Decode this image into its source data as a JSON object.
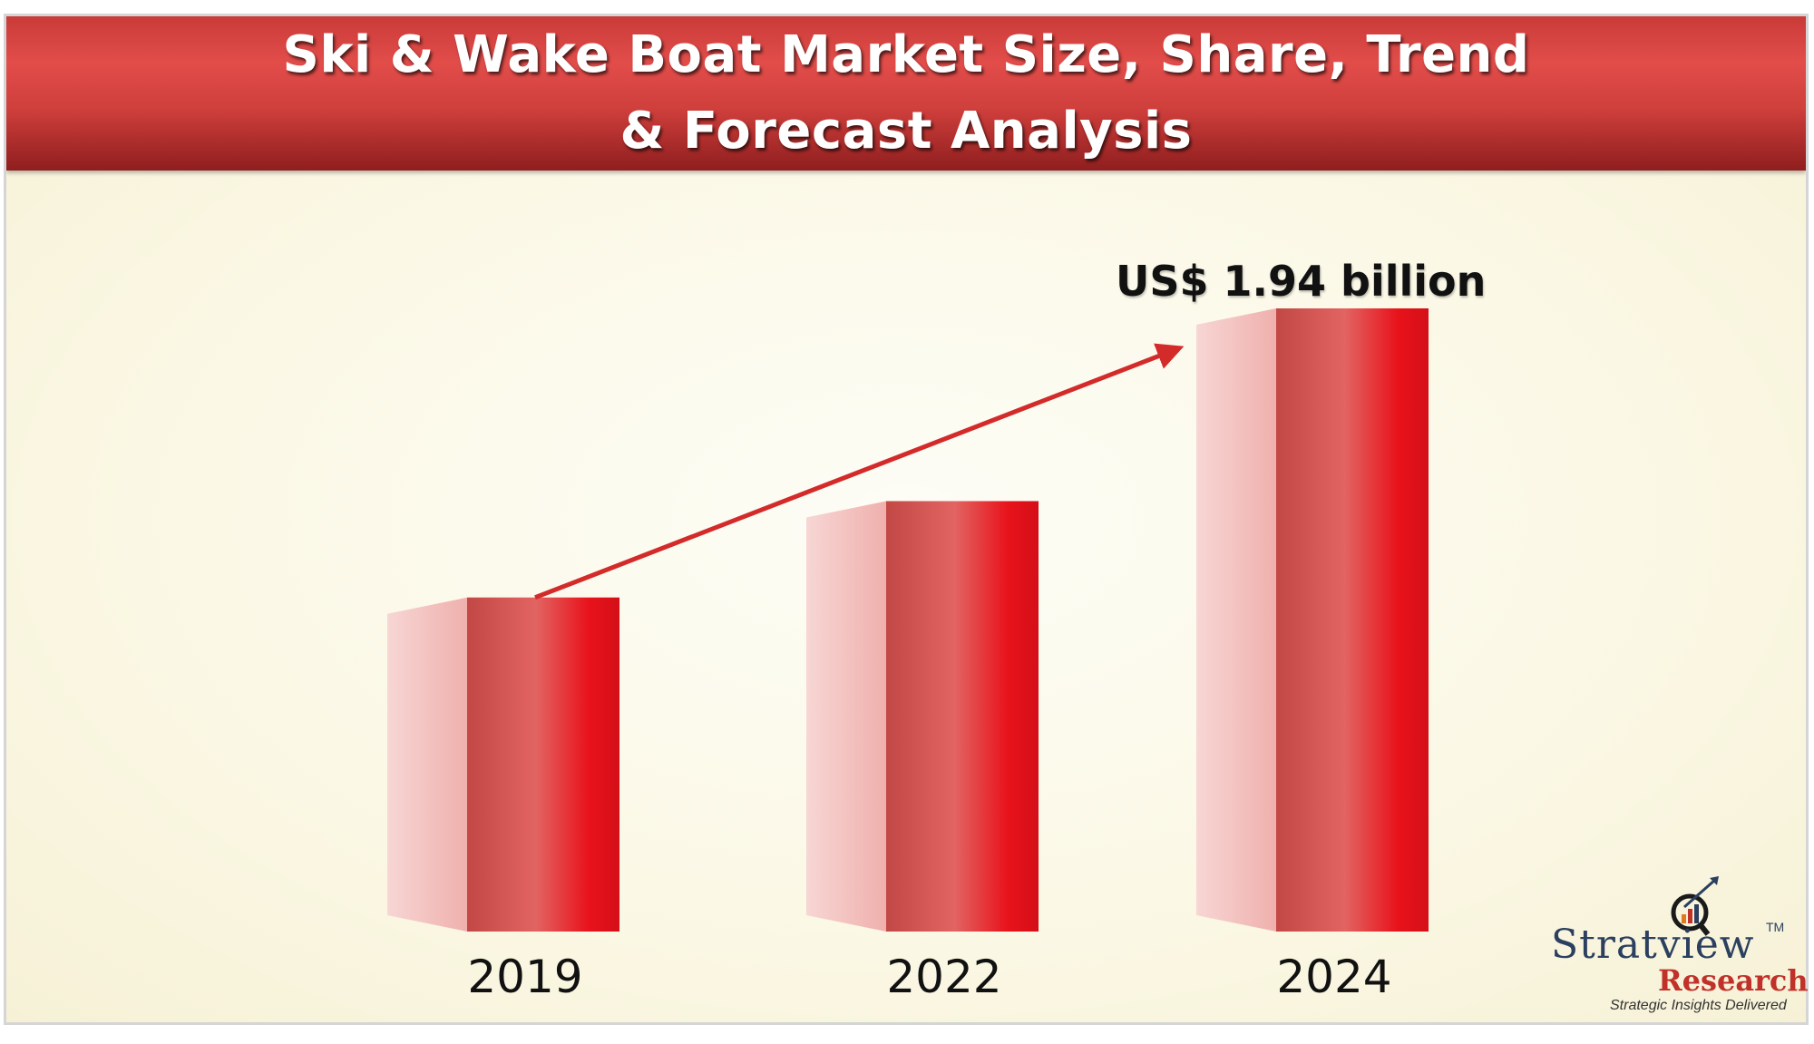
{
  "header": {
    "title": "Ski & Wake Boat Market Size, Share, Trend\n& Forecast Analysis"
  },
  "chart_data": {
    "type": "bar",
    "title": "Ski & Wake Boat Market Size, Share, Trend & Forecast Analysis",
    "categories": [
      "2019",
      "2022",
      "2024"
    ],
    "values": [
      1.04,
      1.34,
      1.94
    ],
    "unit": "US$ billion",
    "annotations": [
      {
        "category": "2024",
        "text": "US$ 1.94 billion"
      }
    ],
    "trend_arrow": {
      "from": "2019",
      "to": "2024"
    },
    "xlabel": "",
    "ylabel": "",
    "ylim": [
      0,
      1.94
    ],
    "grid": false,
    "legend": "none",
    "colors": {
      "bar_front_dark": "#c24845",
      "bar_front_light": "#e26462",
      "bar_front_edge": "#e8121b",
      "bar_side_light": "#f7d6d4",
      "bar_side_dark": "#f0b3b0",
      "arrow": "#d32a2a"
    }
  },
  "logo": {
    "name": "Stratview",
    "trademark": "TM",
    "sub": "Research",
    "tagline": "Strategic Insights Delivered",
    "icon": "magnifier-chart-icon"
  }
}
